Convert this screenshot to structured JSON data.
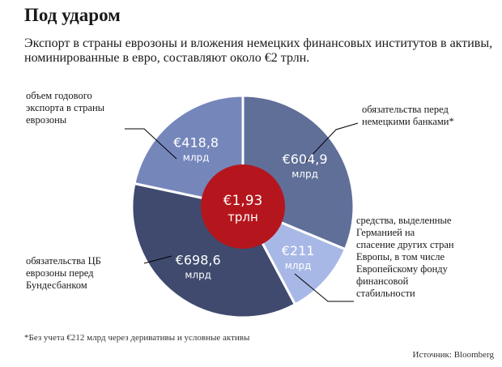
{
  "title": "Под ударом",
  "subtitle": "Экспорт в страны еврозоны и вложения немецких финансовых институтов в активы, номинированные в евро, составляют около €2 трлн.",
  "footnote": "*Без учета €212 млрд через деривативы и условные активы",
  "source": "Источник: Bloomberg",
  "colors": {
    "center": "#b5161d",
    "border": "#ffffff",
    "leader_line": "#000000"
  },
  "chart_data": {
    "type": "pie",
    "style": "donut",
    "total": {
      "value_text": "€1,93",
      "unit_text": "трлн"
    },
    "slices": [
      {
        "description": "обязательства перед\nнемецкими банками*",
        "value": 604.9,
        "value_text": "€604,9",
        "unit_text": "млрд",
        "color": "#5f6f98"
      },
      {
        "description": "средства, выделенные\nГерманией на\nспасение других стран\nЕвропы, в том числе\nЕвропейскому фонду\nфинансовой\nстабильности",
        "value": 211,
        "value_text": "€211",
        "unit_text": "млрд",
        "color": "#a8b8e6"
      },
      {
        "description": "обязательства ЦБ\nеврозоны перед\nБундесбанком",
        "value": 698.6,
        "value_text": "€698,6",
        "unit_text": "млрд",
        "color": "#3f4a6e"
      },
      {
        "description": "объем годового\nэкспорта в страны\nеврозоны",
        "value": 418.8,
        "value_text": "€418,8",
        "unit_text": "млрд",
        "color": "#7586bb"
      }
    ]
  }
}
